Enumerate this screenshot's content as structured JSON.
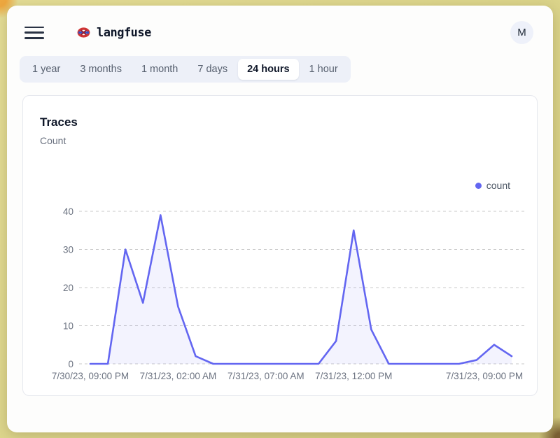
{
  "header": {
    "brand": "langfuse",
    "avatar_initial": "M"
  },
  "time_tabs": {
    "items": [
      "1 year",
      "3 months",
      "1 month",
      "7 days",
      "24 hours",
      "1 hour"
    ],
    "active": "24 hours"
  },
  "card": {
    "title": "Traces",
    "subtitle": "Count"
  },
  "chart_data": {
    "type": "area",
    "title": "Traces",
    "ylabel": "Count",
    "x_unit": "hour",
    "series": [
      {
        "name": "count",
        "color": "#6366f1",
        "fill_opacity": 0.08,
        "values": [
          0,
          0,
          30,
          16,
          39,
          15,
          2,
          0,
          0,
          0,
          0,
          0,
          0,
          0,
          6,
          35,
          9,
          0,
          0,
          0,
          0,
          0,
          1,
          5,
          2
        ]
      }
    ],
    "ylim": [
      0,
      40
    ],
    "y_ticks": [
      0,
      10,
      20,
      30,
      40
    ],
    "x_ticks": [
      {
        "index": 0,
        "label": "7/30/23, 09:00 PM",
        "dx": 0
      },
      {
        "index": 5,
        "label": "7/31/23, 02:00 AM",
        "dx": 0
      },
      {
        "index": 10,
        "label": "7/31/23, 07:00 AM",
        "dx": 0
      },
      {
        "index": 15,
        "label": "7/31/23, 12:00 PM",
        "dx": 0
      },
      {
        "index": 24,
        "label": "7/31/23, 09:00 PM",
        "dx": -39
      }
    ],
    "grid": "horizontal-dashed",
    "grid_color": "#c9c9c9",
    "legend_position": "top-right"
  }
}
